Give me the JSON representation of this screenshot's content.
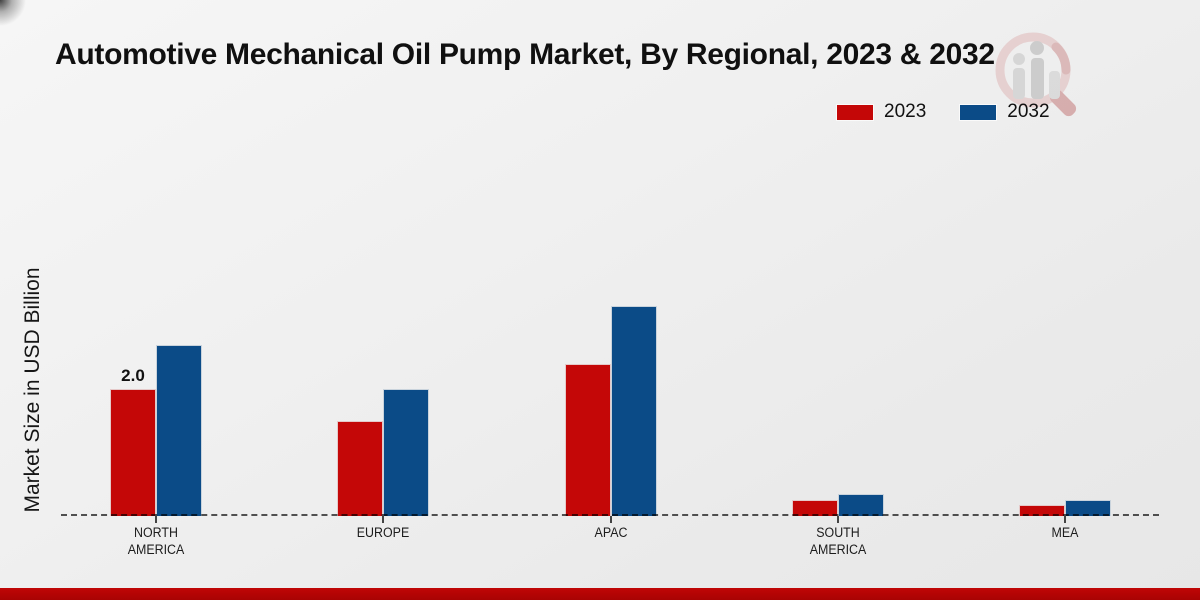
{
  "title": "Automotive Mechanical Oil Pump Market, By Regional, 2023 & 2032",
  "y_axis_label": "Market Size in USD Billion",
  "legend": {
    "items": [
      {
        "label": "2023",
        "color": "#c40707"
      },
      {
        "label": "2032",
        "color": "#0b4b87"
      }
    ]
  },
  "colors": {
    "bar_2023": "#c40707",
    "bar_2032": "#0b4b87",
    "baseline": "#555555",
    "bottom_strip": "#b20505",
    "background": "#eeeeee",
    "text": "#111111"
  },
  "watermark_icon": "magnifier-bar-chart-logo",
  "chart_data": {
    "type": "bar",
    "title": "Automotive Mechanical Oil Pump Market, By Regional, 2023 & 2032",
    "xlabel": "",
    "ylabel": "Market Size in USD Billion",
    "categories": [
      "NORTH AMERICA",
      "EUROPE",
      "APAC",
      "SOUTH AMERICA",
      "MEA"
    ],
    "category_label_lines": [
      [
        "NORTH",
        "AMERICA"
      ],
      [
        "EUROPE"
      ],
      [
        "APAC"
      ],
      [
        "SOUTH",
        "AMERICA"
      ],
      [
        "MEA"
      ]
    ],
    "series": [
      {
        "name": "2023",
        "color": "#c40707",
        "values": [
          2.0,
          1.5,
          2.4,
          0.25,
          0.18
        ]
      },
      {
        "name": "2032",
        "color": "#0b4b87",
        "values": [
          2.7,
          2.0,
          3.3,
          0.35,
          0.25
        ]
      }
    ],
    "annotations": [
      {
        "series_index": 0,
        "category_index": 0,
        "text": "2.0"
      }
    ],
    "ylim": [
      0,
      3.5
    ],
    "grid": false,
    "baseline_style": "dashed",
    "legend_position": "top-right",
    "unit": "USD Billion"
  }
}
